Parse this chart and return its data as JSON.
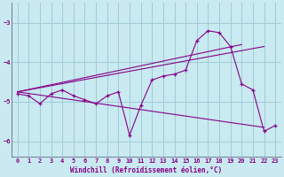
{
  "xlabel": "Windchill (Refroidissement éolien,°C)",
  "bg_color": "#c8eaf0",
  "grid_color": "#a0ccd8",
  "line_color": "#880088",
  "xlim": [
    -0.5,
    23.5
  ],
  "ylim": [
    -6.4,
    -2.5
  ],
  "yticks": [
    -6,
    -5,
    -4,
    -3
  ],
  "xticks": [
    0,
    1,
    2,
    3,
    4,
    5,
    6,
    7,
    8,
    9,
    10,
    11,
    12,
    13,
    14,
    15,
    16,
    17,
    18,
    19,
    20,
    21,
    22,
    23
  ],
  "main_x": [
    0,
    1,
    2,
    3,
    4,
    5,
    6,
    7,
    8,
    9,
    10,
    11,
    12,
    13,
    14,
    15,
    16,
    17,
    18,
    19,
    20,
    21,
    22,
    23
  ],
  "main_y": [
    -4.8,
    -4.85,
    -5.05,
    -4.8,
    -4.7,
    -4.85,
    -4.95,
    -5.05,
    -4.85,
    -4.75,
    -5.85,
    -5.1,
    -4.45,
    -4.35,
    -4.3,
    -4.2,
    -3.45,
    -3.2,
    -3.25,
    -3.6,
    -4.55,
    -4.7,
    -5.75,
    -5.6
  ],
  "trend1_x": [
    0,
    20
  ],
  "trend1_y": [
    -4.75,
    -3.55
  ],
  "trend2_x": [
    0,
    22
  ],
  "trend2_y": [
    -4.75,
    -3.6
  ],
  "trend3_x": [
    0,
    22
  ],
  "trend3_y": [
    -4.75,
    -5.65
  ]
}
